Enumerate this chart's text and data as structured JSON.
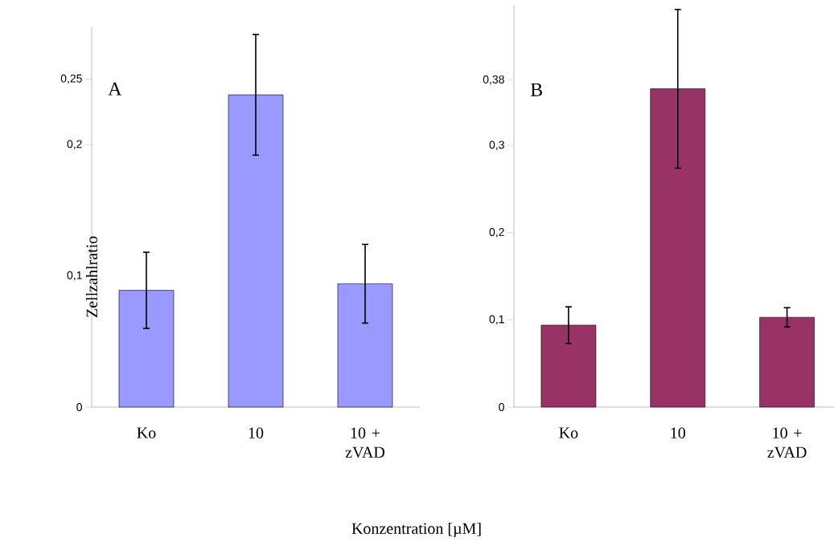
{
  "chart_data": [
    {
      "type": "bar",
      "title": "A",
      "ylabel": "Zellzahlratio",
      "xlabel": "Konzentration [µM]",
      "categories": [
        "Ko",
        "10",
        "10 + zVAD"
      ],
      "values": [
        0.089,
        0.238,
        0.094
      ],
      "errors": [
        0.029,
        0.046,
        0.03
      ],
      "color": "#9999ff",
      "ylim": [
        0,
        0.29
      ],
      "yticks": [
        0,
        {
          "value": 0.1,
          "label": "0,1"
        },
        {
          "value": 0.2,
          "label": "0,2"
        },
        {
          "value": 0.25,
          "label": "0,25"
        }
      ]
    },
    {
      "type": "bar",
      "title": "B",
      "categories": [
        "Ko",
        "10",
        "10 + zVAD"
      ],
      "values": [
        0.094,
        0.365,
        0.103
      ],
      "errors": [
        0.021,
        0.091,
        0.011
      ],
      "color": "#993366",
      "ylim": [
        0,
        0.46
      ],
      "yticks": [
        0,
        {
          "value": 0.1,
          "label": "0,1"
        },
        {
          "value": 0.2,
          "label": "0,2"
        },
        {
          "value": 0.3,
          "label": "0,3"
        },
        {
          "value": 0.375,
          "label": "0,38"
        }
      ]
    }
  ]
}
